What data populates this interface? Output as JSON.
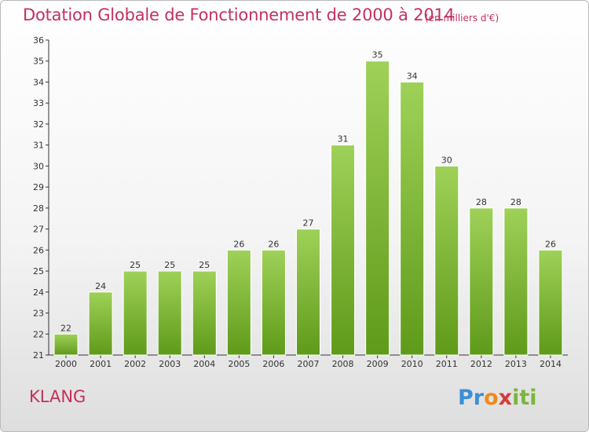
{
  "header": {
    "title": "Dotation Globale de Fonctionnement de 2000 à 2014",
    "subtitle": "(en milliers d'€)"
  },
  "footer": {
    "place": "KLANG",
    "logo": "Proxiti"
  },
  "colors": {
    "title": "#c4305c",
    "bar_top": "#9fd158",
    "bar_bottom": "#5f9a1a"
  },
  "chart_data": {
    "type": "bar",
    "title": "Dotation Globale de Fonctionnement de 2000 à 2014",
    "subtitle": "(en milliers d'€)",
    "categories": [
      "2000",
      "2001",
      "2002",
      "2003",
      "2004",
      "2005",
      "2006",
      "2007",
      "2008",
      "2009",
      "2010",
      "2011",
      "2012",
      "2013",
      "2014"
    ],
    "values": [
      22,
      24,
      25,
      25,
      25,
      26,
      26,
      27,
      31,
      35,
      34,
      30,
      28,
      28,
      26
    ],
    "ylim": [
      21,
      36
    ],
    "yticks": [
      21,
      22,
      23,
      24,
      25,
      26,
      27,
      28,
      29,
      30,
      31,
      32,
      33,
      34,
      35,
      36
    ],
    "grid": false,
    "data_labels": true
  }
}
